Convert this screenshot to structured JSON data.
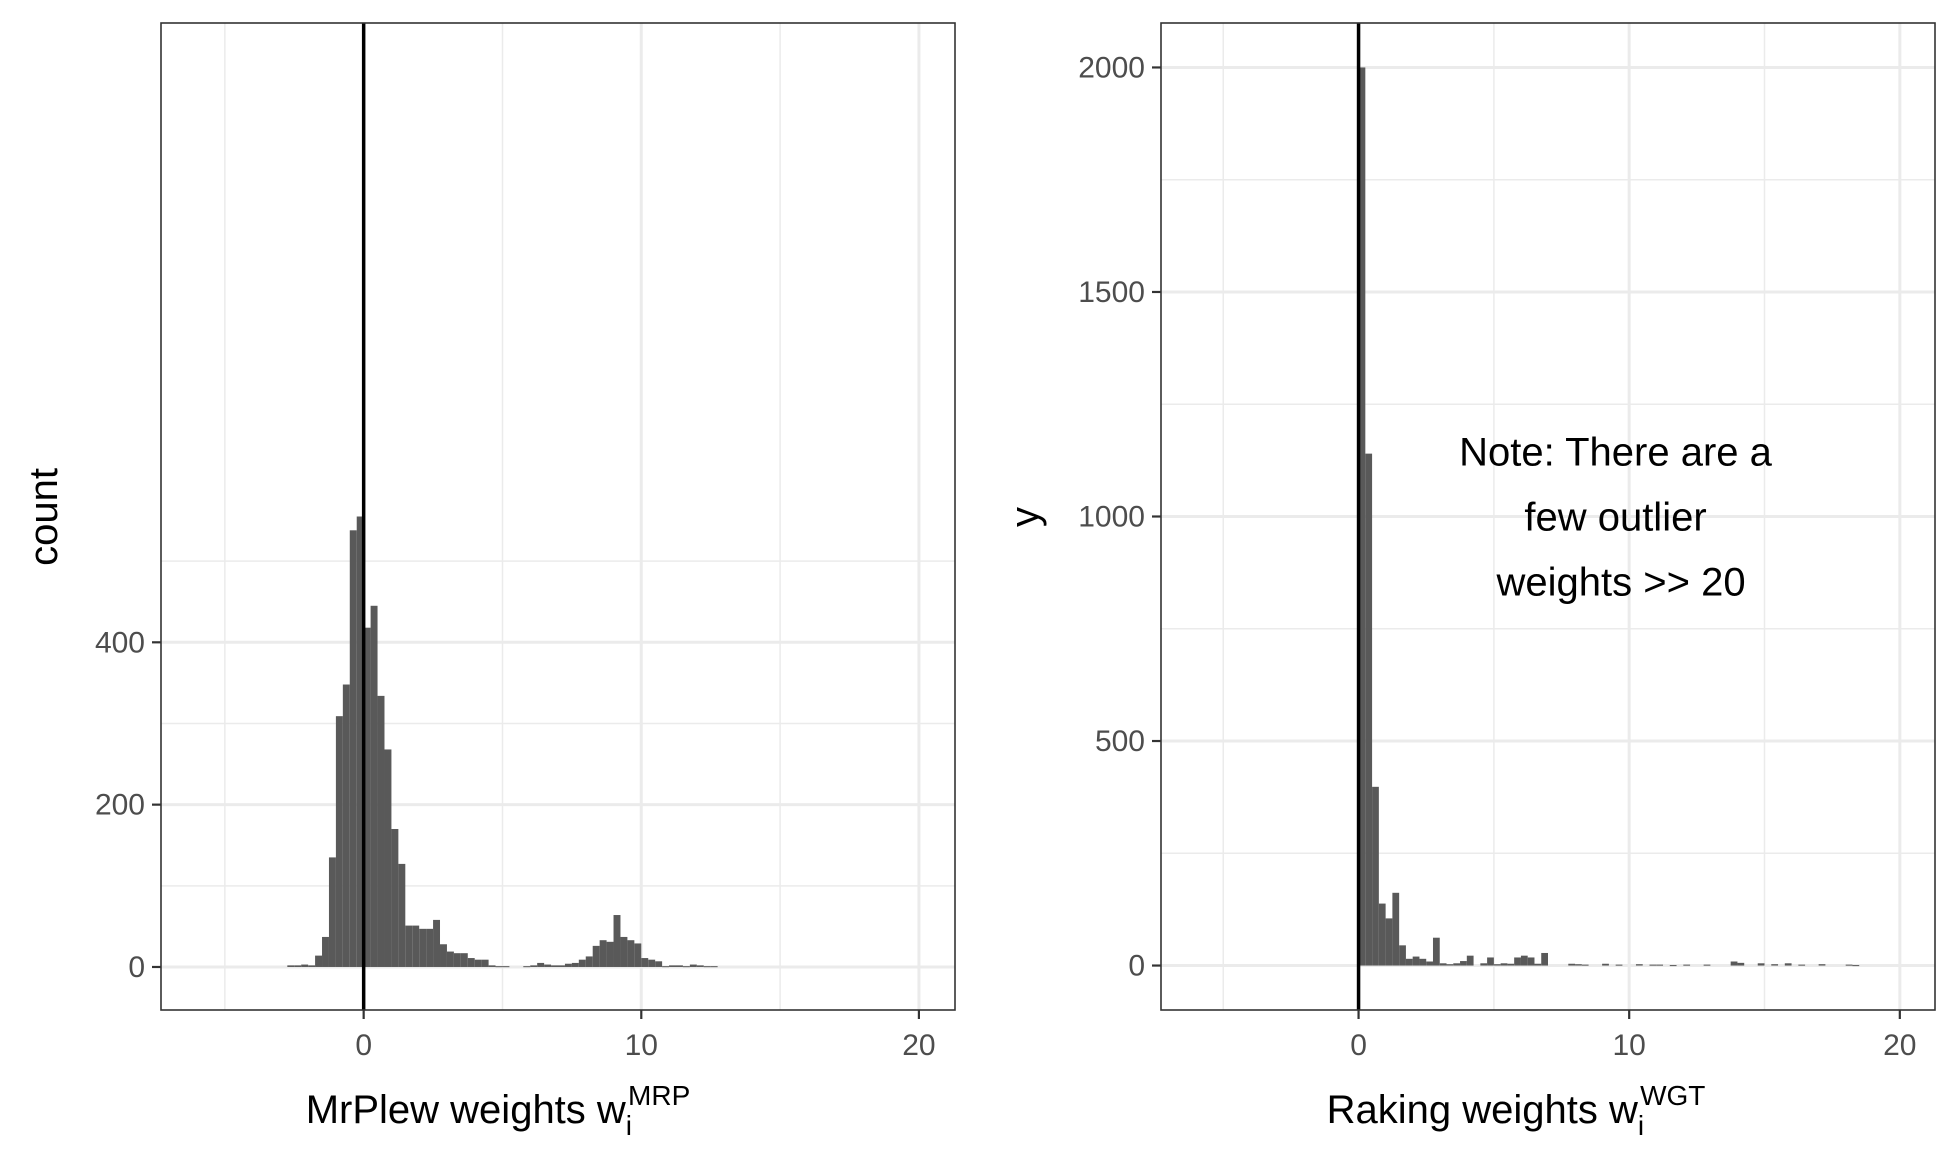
{
  "chart_data": [
    {
      "type": "bar",
      "subtype": "histogram",
      "bar_color": "#595959",
      "vline": {
        "x": 0,
        "color": "#000000"
      },
      "xlim": [
        -7.3,
        21.3
      ],
      "ylim": [
        -53,
        1163
      ],
      "xticks": [
        0,
        10,
        20
      ],
      "yticks": [
        0,
        200,
        400
      ],
      "xtick_labels": [
        "0",
        "10",
        "20"
      ],
      "ytick_labels": [
        "0",
        "200",
        "400"
      ],
      "xlabel": {
        "main": "MrPlew weights w",
        "sub": "i",
        "sup": "MRP"
      },
      "ylabel": "count",
      "grid": true,
      "bin_width": 0.25,
      "bins": [
        {
          "x": -2.625,
          "y": 2
        },
        {
          "x": -2.375,
          "y": 2
        },
        {
          "x": -2.125,
          "y": 3
        },
        {
          "x": -1.875,
          "y": 2
        },
        {
          "x": -1.625,
          "y": 14
        },
        {
          "x": -1.375,
          "y": 37
        },
        {
          "x": -1.125,
          "y": 135
        },
        {
          "x": -0.875,
          "y": 309
        },
        {
          "x": -0.625,
          "y": 348
        },
        {
          "x": -0.375,
          "y": 538
        },
        {
          "x": -0.125,
          "y": 555
        },
        {
          "x": 0.125,
          "y": 418
        },
        {
          "x": 0.375,
          "y": 445
        },
        {
          "x": 0.625,
          "y": 334
        },
        {
          "x": 0.875,
          "y": 268
        },
        {
          "x": 1.125,
          "y": 170
        },
        {
          "x": 1.375,
          "y": 127
        },
        {
          "x": 1.625,
          "y": 51
        },
        {
          "x": 1.875,
          "y": 51
        },
        {
          "x": 2.125,
          "y": 47
        },
        {
          "x": 2.375,
          "y": 47
        },
        {
          "x": 2.625,
          "y": 58
        },
        {
          "x": 2.875,
          "y": 28
        },
        {
          "x": 3.125,
          "y": 19
        },
        {
          "x": 3.375,
          "y": 17
        },
        {
          "x": 3.625,
          "y": 17
        },
        {
          "x": 3.875,
          "y": 11
        },
        {
          "x": 4.125,
          "y": 9
        },
        {
          "x": 4.375,
          "y": 9
        },
        {
          "x": 4.625,
          "y": 2
        },
        {
          "x": 4.875,
          "y": 1
        },
        {
          "x": 5.125,
          "y": 1
        },
        {
          "x": 5.875,
          "y": 1
        },
        {
          "x": 6.125,
          "y": 2
        },
        {
          "x": 6.375,
          "y": 5
        },
        {
          "x": 6.625,
          "y": 3
        },
        {
          "x": 6.875,
          "y": 2
        },
        {
          "x": 7.125,
          "y": 2
        },
        {
          "x": 7.375,
          "y": 4
        },
        {
          "x": 7.625,
          "y": 5
        },
        {
          "x": 7.875,
          "y": 9
        },
        {
          "x": 8.125,
          "y": 13
        },
        {
          "x": 8.375,
          "y": 26
        },
        {
          "x": 8.625,
          "y": 33
        },
        {
          "x": 8.875,
          "y": 31
        },
        {
          "x": 9.125,
          "y": 64
        },
        {
          "x": 9.375,
          "y": 37
        },
        {
          "x": 9.625,
          "y": 33
        },
        {
          "x": 9.875,
          "y": 29
        },
        {
          "x": 10.125,
          "y": 11
        },
        {
          "x": 10.375,
          "y": 9
        },
        {
          "x": 10.625,
          "y": 7
        },
        {
          "x": 10.875,
          "y": 1
        },
        {
          "x": 11.125,
          "y": 2
        },
        {
          "x": 11.375,
          "y": 2
        },
        {
          "x": 11.625,
          "y": 1
        },
        {
          "x": 11.875,
          "y": 3
        },
        {
          "x": 12.125,
          "y": 2
        },
        {
          "x": 12.375,
          "y": 1
        },
        {
          "x": 12.625,
          "y": 1
        }
      ]
    },
    {
      "type": "bar",
      "subtype": "histogram",
      "bar_color": "#595959",
      "vline": {
        "x": 0,
        "color": "#000000"
      },
      "xlim": [
        -7.3,
        21.3
      ],
      "ylim": [
        -99,
        2099
      ],
      "xticks": [
        0,
        10,
        20
      ],
      "yticks": [
        0,
        500,
        1000,
        1500,
        2000
      ],
      "xtick_labels": [
        "0",
        "10",
        "20"
      ],
      "ytick_labels": [
        "0",
        "500",
        "1000",
        "1500",
        "2000"
      ],
      "xlabel": {
        "main": "Raking weights w",
        "sub": "i",
        "sup": "WGT"
      },
      "ylabel": "y",
      "grid": true,
      "annotation": [
        "Note: There are a",
        "few outlier",
        "weights >> 20"
      ],
      "annotation_position": {
        "x": 9.7,
        "y": 1000
      },
      "bin_width": 0.25,
      "bins": [
        {
          "x": 0.125,
          "y": 2000
        },
        {
          "x": 0.375,
          "y": 1140
        },
        {
          "x": 0.625,
          "y": 398
        },
        {
          "x": 0.875,
          "y": 138
        },
        {
          "x": 1.125,
          "y": 105
        },
        {
          "x": 1.375,
          "y": 162
        },
        {
          "x": 1.625,
          "y": 45
        },
        {
          "x": 1.875,
          "y": 15
        },
        {
          "x": 2.125,
          "y": 20
        },
        {
          "x": 2.375,
          "y": 15
        },
        {
          "x": 2.625,
          "y": 9
        },
        {
          "x": 2.875,
          "y": 62
        },
        {
          "x": 3.125,
          "y": 5
        },
        {
          "x": 3.375,
          "y": 3
        },
        {
          "x": 3.625,
          "y": 5
        },
        {
          "x": 3.875,
          "y": 10
        },
        {
          "x": 4.125,
          "y": 22
        },
        {
          "x": 4.625,
          "y": 5
        },
        {
          "x": 4.875,
          "y": 18
        },
        {
          "x": 5.125,
          "y": 3
        },
        {
          "x": 5.375,
          "y": 5
        },
        {
          "x": 5.625,
          "y": 4
        },
        {
          "x": 5.875,
          "y": 18
        },
        {
          "x": 6.125,
          "y": 22
        },
        {
          "x": 6.375,
          "y": 18
        },
        {
          "x": 6.625,
          "y": 4
        },
        {
          "x": 6.875,
          "y": 28
        },
        {
          "x": 7.875,
          "y": 4
        },
        {
          "x": 8.125,
          "y": 3
        },
        {
          "x": 8.375,
          "y": 2
        },
        {
          "x": 9.125,
          "y": 4
        },
        {
          "x": 9.625,
          "y": 2
        },
        {
          "x": 10.375,
          "y": 3
        },
        {
          "x": 10.875,
          "y": 2
        },
        {
          "x": 11.125,
          "y": 2
        },
        {
          "x": 11.625,
          "y": 1
        },
        {
          "x": 12.125,
          "y": 2
        },
        {
          "x": 12.875,
          "y": 2
        },
        {
          "x": 13.875,
          "y": 9
        },
        {
          "x": 14.125,
          "y": 6
        },
        {
          "x": 14.875,
          "y": 5
        },
        {
          "x": 15.375,
          "y": 3
        },
        {
          "x": 15.875,
          "y": 5
        },
        {
          "x": 16.375,
          "y": 2
        },
        {
          "x": 17.125,
          "y": 3
        },
        {
          "x": 18.125,
          "y": 2
        },
        {
          "x": 18.375,
          "y": 1
        }
      ]
    }
  ]
}
